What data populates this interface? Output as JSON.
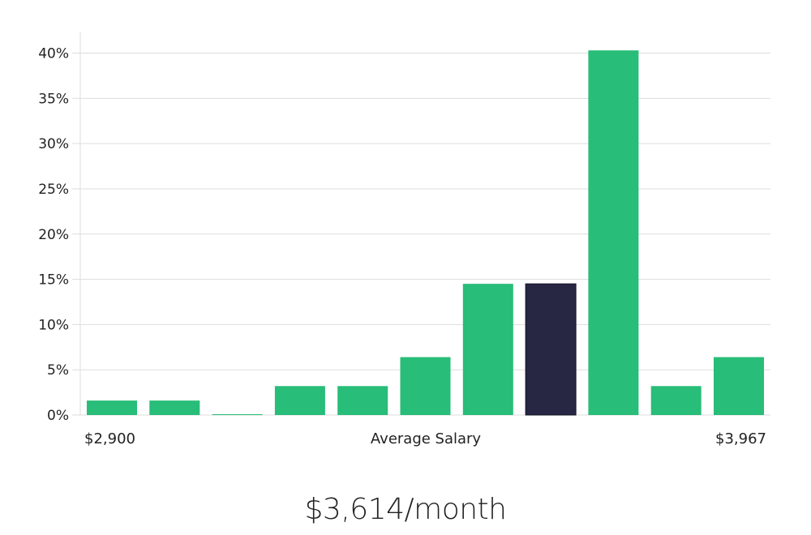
{
  "caption": "$3,614/month",
  "colors": {
    "bar": "#28bd78",
    "highlight": "#272643",
    "grid": "#dddddd",
    "text": "#222222"
  },
  "chart_data": {
    "type": "bar",
    "title": "",
    "ylabel": "",
    "xlabel": "Average Salary",
    "x_min_label": "$2,900",
    "x_max_label": "$3,967",
    "ylim": [
      0,
      42
    ],
    "y_ticks": [
      0,
      5,
      10,
      15,
      20,
      25,
      30,
      35,
      40
    ],
    "y_tick_labels": [
      "0%",
      "5%",
      "10%",
      "15%",
      "20%",
      "25%",
      "30%",
      "35%",
      "40%"
    ],
    "grid": true,
    "values": [
      1.6,
      1.6,
      0,
      3.2,
      3.2,
      6.4,
      14.5,
      14.5,
      40.3,
      3.2,
      6.4
    ],
    "highlight_index": 7
  }
}
